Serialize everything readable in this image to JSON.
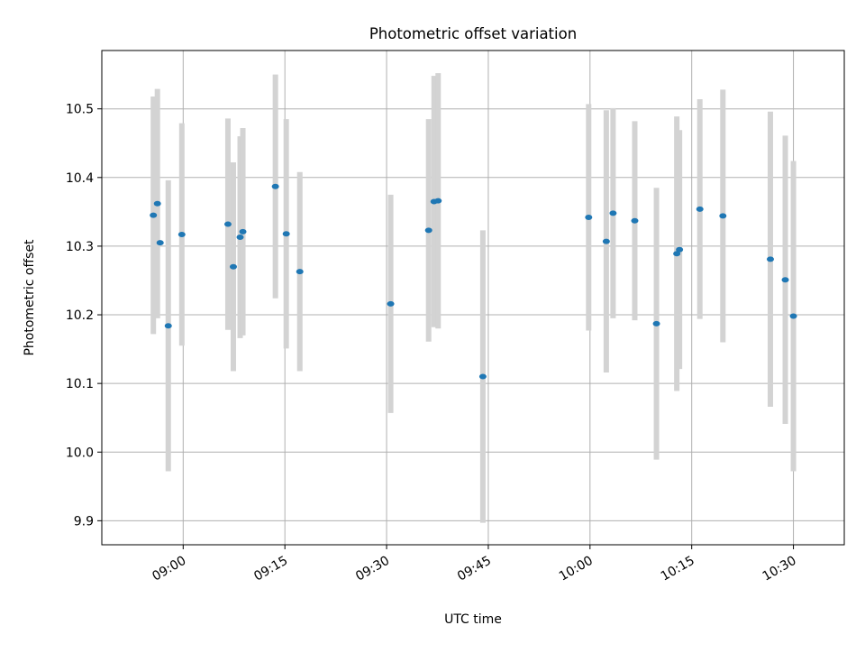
{
  "chart_data": {
    "type": "scatter",
    "title": "Photometric offset variation",
    "xlabel": "UTC time",
    "ylabel": "Photometric offset",
    "x_unit": "UTC time (HH:MM)",
    "xlim": [
      "08:48:00",
      "10:37:30"
    ],
    "ylim": [
      9.865,
      10.585
    ],
    "x_ticks": [
      "09:00",
      "09:15",
      "09:30",
      "09:45",
      "10:00",
      "10:15",
      "10:30"
    ],
    "y_ticks": [
      "9.9",
      "10.0",
      "10.1",
      "10.2",
      "10.3",
      "10.4",
      "10.5"
    ],
    "grid": true,
    "colors": {
      "marker": "#1f77b4",
      "errorbar": "#d3d3d3",
      "grid": "#b0b0b0"
    },
    "series": [
      {
        "points": [
          {
            "time": "08:55:36",
            "y": 10.345,
            "err": 0.173
          },
          {
            "time": "08:56:12",
            "y": 10.362,
            "err": 0.167
          },
          {
            "time": "08:56:36",
            "y": 10.305,
            "err": 0.0
          },
          {
            "time": "08:57:48",
            "y": 10.184,
            "err": 0.212
          },
          {
            "time": "08:59:48",
            "y": 10.317,
            "err": 0.162
          },
          {
            "time": "09:06:36",
            "y": 10.332,
            "err": 0.154
          },
          {
            "time": "09:07:24",
            "y": 10.27,
            "err": 0.152
          },
          {
            "time": "09:08:24",
            "y": 10.313,
            "err": 0.147
          },
          {
            "time": "09:08:48",
            "y": 10.321,
            "err": 0.151
          },
          {
            "time": "09:13:36",
            "y": 10.387,
            "err": 0.163
          },
          {
            "time": "09:15:12",
            "y": 10.318,
            "err": 0.167
          },
          {
            "time": "09:17:12",
            "y": 10.263,
            "err": 0.145
          },
          {
            "time": "09:30:36",
            "y": 10.216,
            "err": 0.159
          },
          {
            "time": "09:36:12",
            "y": 10.323,
            "err": 0.162
          },
          {
            "time": "09:37:00",
            "y": 10.365,
            "err": 0.183
          },
          {
            "time": "09:37:36",
            "y": 10.366,
            "err": 0.186
          },
          {
            "time": "09:44:12",
            "y": 10.11,
            "err": 0.213
          },
          {
            "time": "09:59:48",
            "y": 10.342,
            "err": 0.165
          },
          {
            "time": "10:02:24",
            "y": 10.307,
            "err": 0.191
          },
          {
            "time": "10:03:24",
            "y": 10.348,
            "err": 0.153
          },
          {
            "time": "10:06:36",
            "y": 10.337,
            "err": 0.145
          },
          {
            "time": "10:09:48",
            "y": 10.187,
            "err": 0.198
          },
          {
            "time": "10:12:48",
            "y": 10.289,
            "err": 0.2
          },
          {
            "time": "10:13:12",
            "y": 10.295,
            "err": 0.174
          },
          {
            "time": "10:16:12",
            "y": 10.354,
            "err": 0.16
          },
          {
            "time": "10:19:36",
            "y": 10.344,
            "err": 0.184
          },
          {
            "time": "10:26:36",
            "y": 10.281,
            "err": 0.215
          },
          {
            "time": "10:28:48",
            "y": 10.251,
            "err": 0.21
          },
          {
            "time": "10:30:00",
            "y": 10.198,
            "err": 0.226
          }
        ]
      }
    ]
  }
}
